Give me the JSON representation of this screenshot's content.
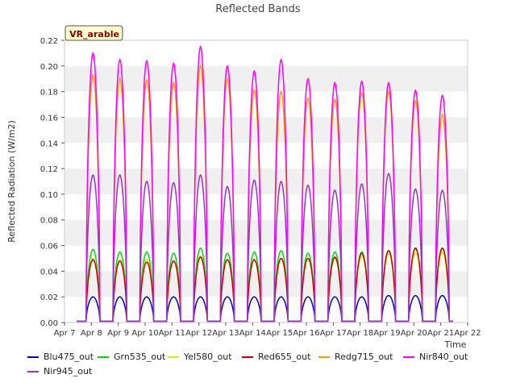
{
  "chart_data": {
    "type": "line",
    "title": "Reflected Bands",
    "ylabel": "Reflected Radiation (W/m2)",
    "xlabel": "Time",
    "ylim": [
      0,
      0.22
    ],
    "yticks": [
      "0.00",
      "0.02",
      "0.04",
      "0.06",
      "0.08",
      "0.10",
      "0.12",
      "0.14",
      "0.16",
      "0.18",
      "0.20",
      "0.22"
    ],
    "xticks": [
      "Apr 7",
      "Apr 8",
      "Apr 9",
      "Apr 10",
      "Apr 11",
      "Apr 12",
      "Apr 13",
      "Apr 14",
      "Apr 15",
      "Apr 16",
      "Apr 17",
      "Apr 18",
      "Apr 19",
      "Apr 20",
      "Apr 21",
      "Apr 22"
    ],
    "annotation": "VR_arable",
    "grid": "horizontal bands",
    "legend_position": "bottom",
    "days": [
      "Apr 8",
      "Apr 9",
      "Apr 10",
      "Apr 11",
      "Apr 12",
      "Apr 13",
      "Apr 14",
      "Apr 15",
      "Apr 16",
      "Apr 17",
      "Apr 18",
      "Apr 19",
      "Apr 20",
      "Apr 21"
    ],
    "series": [
      {
        "name": "Blu475_out",
        "color": "#0000cc",
        "daily_peak": [
          0.02,
          0.02,
          0.02,
          0.02,
          0.02,
          0.02,
          0.02,
          0.02,
          0.02,
          0.02,
          0.02,
          0.021,
          0.021,
          0.021
        ]
      },
      {
        "name": "Grn535_out",
        "color": "#00dd00",
        "daily_peak": [
          0.057,
          0.055,
          0.055,
          0.054,
          0.058,
          0.054,
          0.055,
          0.056,
          0.054,
          0.055,
          0.055,
          0.056,
          0.058,
          0.058
        ]
      },
      {
        "name": "Yel580_out",
        "color": "#e6e600",
        "daily_peak": [
          0.05,
          0.049,
          0.049,
          0.048,
          0.052,
          0.049,
          0.049,
          0.05,
          0.05,
          0.05,
          0.052,
          0.054,
          0.055,
          0.055
        ]
      },
      {
        "name": "Red655_out",
        "color": "#cc0000",
        "daily_peak": [
          0.049,
          0.048,
          0.047,
          0.048,
          0.051,
          0.049,
          0.049,
          0.05,
          0.05,
          0.051,
          0.054,
          0.056,
          0.058,
          0.058
        ]
      },
      {
        "name": "Redg715_out",
        "color": "#ff9900",
        "daily_peak": [
          0.193,
          0.19,
          0.189,
          0.187,
          0.2,
          0.19,
          0.181,
          0.18,
          0.175,
          0.174,
          0.179,
          0.18,
          0.173,
          0.162
        ]
      },
      {
        "name": "Nir840_out",
        "color": "#ff00ff",
        "daily_peak": [
          0.21,
          0.205,
          0.204,
          0.202,
          0.215,
          0.2,
          0.196,
          0.205,
          0.19,
          0.187,
          0.188,
          0.187,
          0.181,
          0.177
        ]
      },
      {
        "name": "Nir945_out",
        "color": "#9933cc",
        "daily_peak": [
          0.115,
          0.115,
          0.11,
          0.109,
          0.115,
          0.106,
          0.111,
          0.11,
          0.107,
          0.103,
          0.108,
          0.116,
          0.104,
          0.103
        ]
      }
    ]
  }
}
